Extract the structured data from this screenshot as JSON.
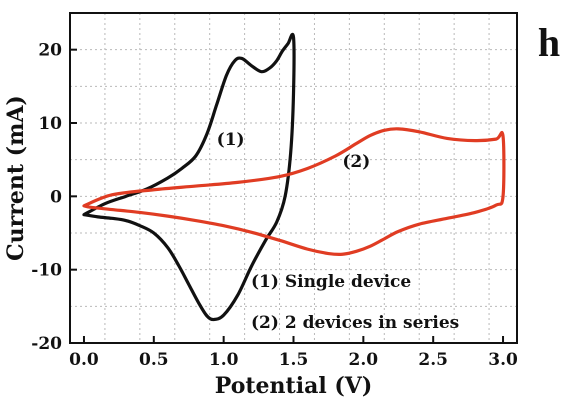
{
  "panel_label": "h",
  "chart_data": {
    "type": "line",
    "xlabel": "Potential (V)",
    "ylabel": "Current (mA)",
    "xlim": [
      -0.1,
      3.1
    ],
    "ylim": [
      -20,
      25
    ],
    "xticks": [
      0.0,
      0.5,
      1.0,
      1.5,
      2.0,
      2.5,
      3.0
    ],
    "xtick_labels": [
      "0.0",
      "0.5",
      "1.0",
      "1.5",
      "2.0",
      "2.5",
      "3.0"
    ],
    "yticks": [
      -20,
      -10,
      0,
      10,
      20
    ],
    "ytick_labels": [
      "-20",
      "-10",
      "0",
      "10",
      "20"
    ],
    "grid": true,
    "series": [
      {
        "name": "(1) Single device",
        "curve_label": "(1)",
        "color": "#111111",
        "x": [
          0.0,
          0.15,
          0.3,
          0.45,
          0.6,
          0.7,
          0.8,
          0.88,
          0.95,
          1.02,
          1.08,
          1.13,
          1.2,
          1.27,
          1.33,
          1.38,
          1.42,
          1.46,
          1.5,
          1.5,
          1.48,
          1.44,
          1.38,
          1.3,
          1.2,
          1.1,
          1.0,
          0.93,
          0.88,
          0.82,
          0.75,
          0.68,
          0.6,
          0.5,
          0.4,
          0.3,
          0.2,
          0.1,
          0.0
        ],
        "y": [
          -2.5,
          -1.0,
          0.0,
          1.0,
          2.5,
          3.8,
          5.5,
          8.5,
          12.5,
          16.5,
          18.5,
          18.8,
          17.8,
          17.0,
          17.5,
          18.5,
          19.8,
          20.8,
          21.7,
          14.0,
          6.0,
          0.0,
          -3.5,
          -6.0,
          -9.5,
          -13.5,
          -16.2,
          -16.8,
          -16.3,
          -14.5,
          -12.0,
          -9.5,
          -7.0,
          -5.0,
          -4.0,
          -3.3,
          -3.0,
          -2.8,
          -2.5
        ]
      },
      {
        "name": "(2) 2 devices in series",
        "curve_label": "(2)",
        "color": "#e03c23",
        "x": [
          0.0,
          0.2,
          0.5,
          0.8,
          1.1,
          1.4,
          1.6,
          1.8,
          1.95,
          2.05,
          2.15,
          2.25,
          2.4,
          2.6,
          2.8,
          2.95,
          3.0,
          3.0,
          2.95,
          2.8,
          2.6,
          2.4,
          2.25,
          2.15,
          2.05,
          1.95,
          1.85,
          1.75,
          1.6,
          1.4,
          1.2,
          1.0,
          0.8,
          0.6,
          0.4,
          0.2,
          0.05,
          0.0
        ],
        "y": [
          -1.3,
          0.2,
          0.9,
          1.4,
          1.9,
          2.7,
          3.8,
          5.5,
          7.2,
          8.3,
          9.0,
          9.2,
          8.8,
          7.9,
          7.6,
          7.8,
          8.2,
          0.0,
          -1.2,
          -2.2,
          -3.0,
          -3.8,
          -4.8,
          -5.8,
          -6.8,
          -7.5,
          -7.9,
          -7.8,
          -7.2,
          -6.0,
          -4.9,
          -4.0,
          -3.3,
          -2.7,
          -2.2,
          -1.8,
          -1.5,
          -1.3
        ]
      }
    ],
    "legend": {
      "placement": "bottom-right",
      "entries": [
        "(1) Single device",
        "(2) 2 devices in series"
      ]
    }
  }
}
